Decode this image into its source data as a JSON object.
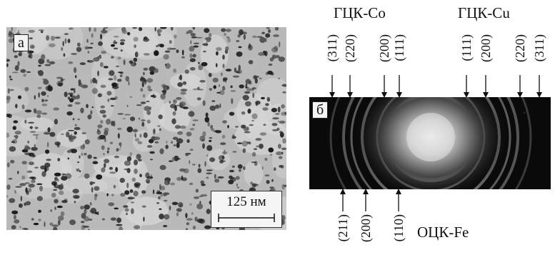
{
  "panel_a": {
    "label": "а",
    "scale_bar_text": "125 нм"
  },
  "panel_b": {
    "label": "б",
    "phase_fcc_co": "ГЦК-Co",
    "phase_fcc_cu": "ГЦК-Cu",
    "phase_bcc_fe": "ОЦК-Fe",
    "co_indices": [
      "(311)",
      "(220)",
      "(200)",
      "(111)"
    ],
    "cu_indices": [
      "(111)",
      "(200)",
      "(220)",
      "(311)"
    ],
    "fe_indices": [
      "(211)",
      "(200)",
      "(110)"
    ]
  }
}
